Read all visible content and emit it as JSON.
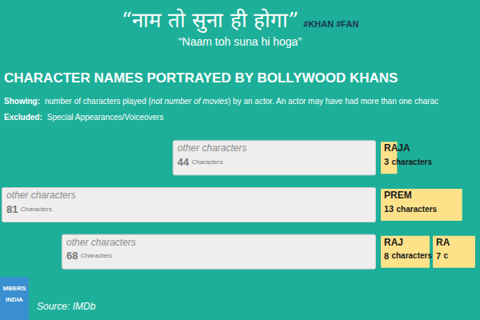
{
  "header": {
    "title": "“नाम तो सुना ही होगा”",
    "hashtags": "#KHAN #FAN",
    "subtitle": "“Naam toh suna hi hoga”",
    "heading": "CHARACTER NAMES PORTRAYED BY BOLLYWOOD KHANS",
    "showing_label": "Showing:",
    "showing_parts": [
      "number of characters played (",
      "not number of movies",
      ") by an actor. An actor may have had more than one charac"
    ],
    "excluded_label": "Excluded:",
    "excluded_text": "Special Appearances/Voiceovers"
  },
  "footer": {
    "logo": [
      "MBERS",
      "INDIA"
    ],
    "source_label": "Source:",
    "source_text": "IMDb"
  },
  "chart_data": [
    {
      "type": "bar",
      "orientation": "horizontal",
      "stacked": false,
      "data_labels": true,
      "tick_labels": false,
      "grid": false,
      "categories": [
        null,
        null,
        null
      ],
      "xlim": [
        0,
        81
      ],
      "series": [
        {
          "color": "#eeeeee",
          "values": [
            44,
            81,
            68
          ],
          "point_labels": [
            "other characters",
            "other characters",
            "other characters"
          ],
          "value_labels": [
            "44 Characters",
            "81 Characters",
            "68 Characters"
          ]
        }
      ]
    },
    {
      "type": "bar",
      "orientation": "horizontal",
      "stacked": true,
      "data_labels": true,
      "tick_labels": false,
      "grid": false,
      "categories": [
        null,
        null,
        null
      ],
      "xlim": [
        0,
        15
      ],
      "series": [
        {
          "color": "#fde28a",
          "values": [
            3,
            13,
            8
          ],
          "point_labels": [
            "RAJA",
            "PREM",
            "RAJ"
          ],
          "value_labels": [
            "3 characters",
            "13 characters",
            "8 characters"
          ]
        },
        {
          "color": "#fde28a",
          "values": [
            null,
            null,
            7
          ],
          "point_labels": [
            null,
            null,
            "RA"
          ],
          "value_labels": [
            null,
            null,
            "7 c"
          ]
        }
      ]
    }
  ]
}
